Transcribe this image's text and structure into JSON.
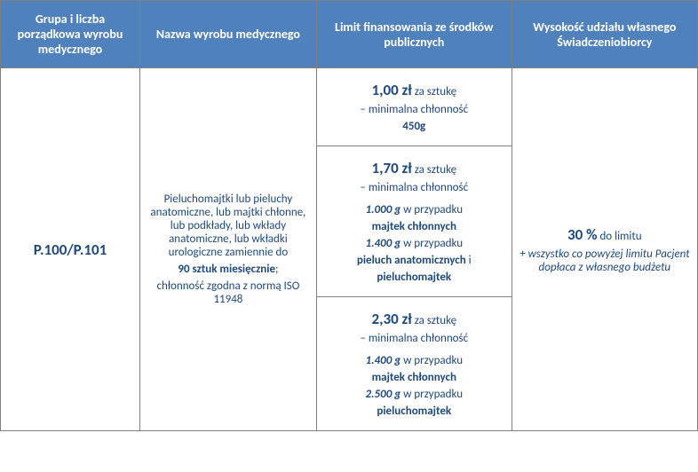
{
  "headers": {
    "col1": "Grupa i liczba porządkowa wyrobu medycznego",
    "col2": "Nazwa wyrobu medycznego",
    "col3": "Limit finansowania ze środków publicznych",
    "col4": "Wysokość udziału własnego Świadczeniobiorcy"
  },
  "code": "P.100/P.101",
  "name": {
    "line1": "Pieluchomajtki lub pieluchy anatomiczne, lub majtki chłonne, lub podkłady, lub wkłady anatomiczne, lub wkładki urologiczne zamiennie do",
    "bold1": "90 sztuk miesięcznie",
    "sep": ";",
    "line2": "chłonność zgodna z normą ISO 11948"
  },
  "limit1": {
    "price": "1,00 zł",
    "per": " za sztukę",
    "minlabel": "– minimalna chłonność",
    "weight": "450g"
  },
  "limit2": {
    "price": "1,70 zł",
    "per": " za sztukę",
    "minlabel": "– minimalna chłonność",
    "w1": "1.000 g",
    "t1a": " w przypadku",
    "t1b": "majtek chłonnych",
    "w2": "1.400 g",
    "t2a": " w przypadku",
    "t2b": "pieluch anatomicznych",
    "t2c": " i",
    "t2d": "pieluchomajtek"
  },
  "limit3": {
    "price": "2,30 zł",
    "per": " za sztukę",
    "minlabel": "– minimalna chłonność",
    "w1": "1.400 g",
    "t1a": " w przypadku",
    "t1b": "majtek chłonnych",
    "w2": "2.500 g",
    "t2a": " w przypadku",
    "t2b": "pieluchomajtek"
  },
  "share": {
    "pct": "30 %",
    "pctlabel": " do limitu",
    "note": "+ wszystko co powyżej limitu Pacjent dopłaca z własnego budżetu"
  }
}
